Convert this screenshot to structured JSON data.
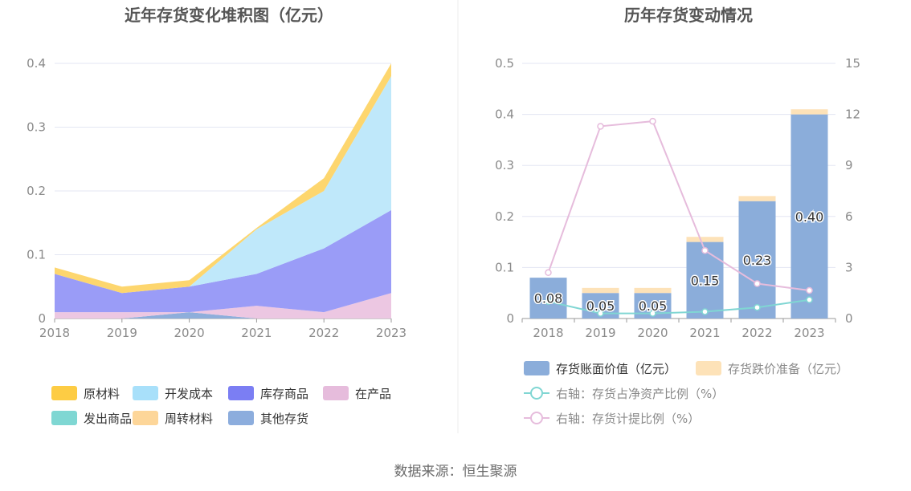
{
  "footer": {
    "source": "数据来源：恒生聚源"
  },
  "chart_data": [
    {
      "type": "area",
      "stacked": true,
      "title": "近年存货变化堆积图（亿元）",
      "categories": [
        "2018",
        "2019",
        "2020",
        "2021",
        "2022",
        "2023"
      ],
      "yticks": [
        "0",
        "0.1",
        "0.2",
        "0.3",
        "0.4"
      ],
      "ylim": [
        0,
        0.4
      ],
      "grid": true,
      "legend_position": "bottom",
      "series": [
        {
          "name": "其他存货",
          "color": "#8eaedb",
          "values": [
            0,
            0,
            0.01,
            0,
            0,
            0
          ]
        },
        {
          "name": "发出商品",
          "color": "#80d6d3",
          "values": [
            0,
            0,
            0,
            0,
            0,
            0
          ]
        },
        {
          "name": "在产品",
          "color": "#ecc7e2",
          "values": [
            0.01,
            0.01,
            0,
            0.02,
            0.01,
            0.04
          ]
        },
        {
          "name": "库存商品",
          "color": "#9a9cf7",
          "values": [
            0.06,
            0.03,
            0.04,
            0.05,
            0.1,
            0.13
          ]
        },
        {
          "name": "开发成本",
          "color": "#bfe8fa",
          "values": [
            0,
            0,
            0,
            0.07,
            0.09,
            0.21
          ]
        },
        {
          "name": "周转材料",
          "color": "#fcd78f",
          "values": [
            0,
            0,
            0,
            0,
            0,
            0
          ]
        },
        {
          "name": "原材料",
          "color": "#fdd66e",
          "values": [
            0.01,
            0.01,
            0.01,
            0.002,
            0.02,
            0.02
          ]
        }
      ],
      "legend": [
        {
          "name": "原材料",
          "color": "#fdcc44"
        },
        {
          "name": "开发成本",
          "color": "#a8e0fa"
        },
        {
          "name": "库存商品",
          "color": "#7b7ef3"
        },
        {
          "name": "在产品",
          "color": "#e6bcdc"
        },
        {
          "name": "发出商品",
          "color": "#7fd7d3"
        },
        {
          "name": "周转材料",
          "color": "#fdd699"
        },
        {
          "name": "其他存货",
          "color": "#8caddd"
        }
      ]
    },
    {
      "type": "bar",
      "title": "历年存货变动情况",
      "categories": [
        "2018",
        "2019",
        "2020",
        "2021",
        "2022",
        "2023"
      ],
      "ylim": [
        0,
        0.5
      ],
      "yticks": [
        "0",
        "0.1",
        "0.2",
        "0.3",
        "0.4",
        "0.5"
      ],
      "y2lim": [
        0,
        15
      ],
      "y2ticks": [
        "0",
        "3",
        "6",
        "9",
        "12",
        "15"
      ],
      "grid": true,
      "legend_position": "bottom",
      "bars": [
        {
          "name": "存货账面价值（亿元）",
          "color": "#8badda",
          "values": [
            0.08,
            0.05,
            0.05,
            0.15,
            0.23,
            0.4
          ],
          "labels": [
            "0.08",
            "0.05",
            "0.05",
            "0.15",
            "0.23",
            "0.40"
          ]
        },
        {
          "name": "存货跌价准备（亿元）",
          "color": "#fde2b8",
          "values": [
            0,
            0.01,
            0.01,
            0.01,
            0.01,
            0.01
          ]
        }
      ],
      "lines": [
        {
          "name": "右轴：存货占净资产比例（%）",
          "color": "#80d6d3",
          "axis": "right",
          "values": [
            1.0,
            0.3,
            0.3,
            0.4,
            0.65,
            1.1
          ]
        },
        {
          "name": "右轴：存货计提比例（%）",
          "color": "#e6bcdc",
          "axis": "right",
          "values": [
            2.7,
            11.3,
            11.6,
            4.0,
            2.05,
            1.65
          ]
        }
      ]
    }
  ]
}
